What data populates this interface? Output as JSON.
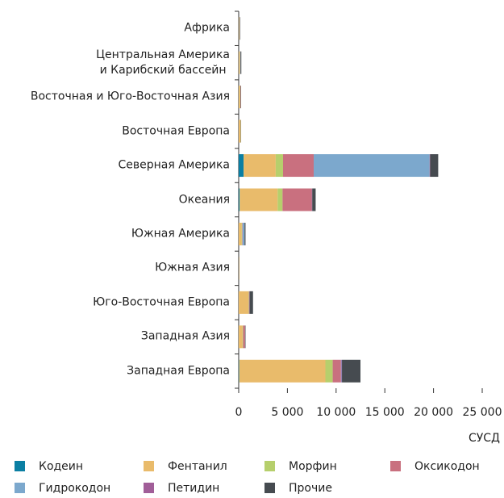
{
  "chart_data": {
    "type": "bar",
    "orientation": "horizontal",
    "stacked": true,
    "categories": [
      "Африка",
      "Центральная Америка\nи Карибский бассейн",
      "Восточная и Юго-Восточная Азия",
      "Восточная Европа",
      "Северная Америка",
      "Океания",
      "Южная Америка",
      "Южная Азия",
      "Юго-Восточная Европа",
      "Западная Азия",
      "Западная Европа"
    ],
    "series": [
      {
        "name": "Кодеин",
        "color": "#0b7fa3",
        "values": [
          0,
          0,
          0,
          0,
          500,
          100,
          0,
          0,
          0,
          0,
          50
        ]
      },
      {
        "name": "Фентанил",
        "color": "#e9bb6b",
        "values": [
          50,
          100,
          150,
          200,
          3300,
          3900,
          300,
          50,
          1000,
          400,
          8850
        ]
      },
      {
        "name": "Морфин",
        "color": "#b6cf6c",
        "values": [
          20,
          30,
          20,
          20,
          750,
          500,
          50,
          0,
          50,
          50,
          750
        ]
      },
      {
        "name": "Оксикодон",
        "color": "#c9707f",
        "values": [
          0,
          20,
          30,
          0,
          3150,
          3000,
          50,
          0,
          50,
          200,
          850
        ]
      },
      {
        "name": "Гидрокодон",
        "color": "#7ca8cd",
        "values": [
          0,
          30,
          0,
          0,
          11900,
          0,
          200,
          0,
          0,
          0,
          50
        ]
      },
      {
        "name": "Петидин",
        "color": "#a15e98",
        "values": [
          10,
          10,
          10,
          0,
          50,
          50,
          0,
          0,
          20,
          0,
          50
        ]
      },
      {
        "name": "Прочие",
        "color": "#464b50",
        "values": [
          60,
          80,
          40,
          30,
          830,
          350,
          100,
          30,
          350,
          50,
          1900
        ]
      }
    ],
    "xlim": [
      0,
      25000
    ],
    "xticks": [
      0,
      {
        "value": 5000,
        "label": "5 000"
      },
      {
        "value": 10000,
        "label": "10 000"
      },
      {
        "value": 15000,
        "label": "15 000"
      },
      {
        "value": 20000,
        "label": "20 000"
      },
      {
        "value": 25000,
        "label": "25 000"
      }
    ],
    "x_label": "СУСД",
    "legend": "bottom"
  }
}
